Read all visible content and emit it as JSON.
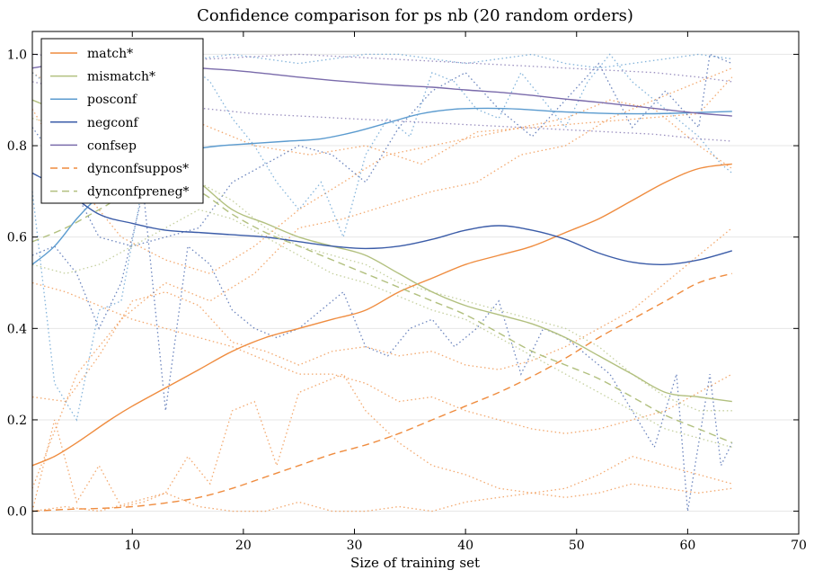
{
  "chart_data": {
    "type": "line",
    "title": "Confidence comparison for ps nb (20 random orders)",
    "xlabel": "Size of training set",
    "ylabel": "",
    "xlim": [
      1,
      70
    ],
    "ylim": [
      -0.05,
      1.05
    ],
    "xticks": [
      10,
      20,
      30,
      40,
      50,
      60,
      70
    ],
    "yticks": [
      0.0,
      0.2,
      0.4,
      0.6,
      0.8,
      1.0
    ],
    "grid": "horizontal",
    "legend_position": "top-left",
    "series": [
      {
        "name": "match*",
        "color": "#ef8c3f",
        "dash": "solid",
        "x": [
          1,
          3,
          5,
          8,
          10,
          13,
          16,
          19,
          22,
          25,
          28,
          31,
          34,
          37,
          40,
          43,
          46,
          49,
          52,
          55,
          58,
          61,
          64
        ],
        "y": [
          0.1,
          0.12,
          0.15,
          0.2,
          0.23,
          0.27,
          0.31,
          0.35,
          0.38,
          0.4,
          0.42,
          0.44,
          0.48,
          0.51,
          0.54,
          0.56,
          0.58,
          0.61,
          0.64,
          0.68,
          0.72,
          0.75,
          0.76
        ]
      },
      {
        "name": "mismatch*",
        "color": "#b2c07f",
        "dash": "solid",
        "x": [
          1,
          4,
          7,
          10,
          13,
          16,
          19,
          22,
          25,
          28,
          31,
          34,
          37,
          40,
          43,
          46,
          49,
          52,
          55,
          58,
          61,
          64
        ],
        "y": [
          0.9,
          0.87,
          0.84,
          0.81,
          0.77,
          0.72,
          0.66,
          0.63,
          0.6,
          0.58,
          0.56,
          0.52,
          0.48,
          0.45,
          0.43,
          0.41,
          0.38,
          0.34,
          0.3,
          0.26,
          0.25,
          0.24
        ]
      },
      {
        "name": "posconf",
        "color": "#5b9bcf",
        "dash": "solid",
        "x": [
          1,
          3,
          5,
          7,
          9,
          12,
          15,
          18,
          21,
          24,
          27,
          30,
          33,
          36,
          39,
          42,
          45,
          48,
          51,
          54,
          57,
          60,
          64
        ],
        "y": [
          0.54,
          0.58,
          0.64,
          0.69,
          0.73,
          0.77,
          0.79,
          0.8,
          0.805,
          0.81,
          0.815,
          0.83,
          0.85,
          0.87,
          0.88,
          0.882,
          0.88,
          0.875,
          0.872,
          0.87,
          0.87,
          0.872,
          0.875
        ]
      },
      {
        "name": "negconf",
        "color": "#3b5ca8",
        "dash": "solid",
        "x": [
          1,
          4,
          7,
          10,
          13,
          16,
          19,
          22,
          25,
          28,
          31,
          34,
          37,
          40,
          43,
          46,
          49,
          52,
          55,
          58,
          61,
          64
        ],
        "y": [
          0.74,
          0.7,
          0.65,
          0.63,
          0.615,
          0.61,
          0.605,
          0.6,
          0.59,
          0.58,
          0.575,
          0.58,
          0.595,
          0.615,
          0.625,
          0.615,
          0.595,
          0.565,
          0.545,
          0.54,
          0.55,
          0.57
        ]
      },
      {
        "name": "confsep",
        "color": "#7a6bab",
        "dash": "solid",
        "x": [
          1,
          4,
          7,
          10,
          13,
          16,
          19,
          22,
          25,
          28,
          31,
          34,
          37,
          40,
          43,
          46,
          49,
          52,
          55,
          58,
          61,
          64
        ],
        "y": [
          0.97,
          0.98,
          0.98,
          0.978,
          0.975,
          0.97,
          0.965,
          0.958,
          0.95,
          0.943,
          0.937,
          0.932,
          0.928,
          0.922,
          0.917,
          0.91,
          0.902,
          0.895,
          0.887,
          0.879,
          0.871,
          0.865
        ]
      },
      {
        "name": "dynconfsuppos*",
        "color": "#ef8c3f",
        "dash": "dashed",
        "x": [
          1,
          4,
          7,
          10,
          13,
          16,
          19,
          22,
          25,
          28,
          31,
          34,
          37,
          40,
          43,
          46,
          49,
          52,
          55,
          58,
          61,
          64
        ],
        "y": [
          0.0,
          0.004,
          0.006,
          0.01,
          0.018,
          0.03,
          0.05,
          0.075,
          0.1,
          0.125,
          0.145,
          0.17,
          0.2,
          0.23,
          0.26,
          0.295,
          0.335,
          0.38,
          0.42,
          0.46,
          0.5,
          0.52
        ]
      },
      {
        "name": "dynconfpreneg*",
        "color": "#b2c07f",
        "dash": "dashed",
        "x": [
          1,
          4,
          7,
          10,
          13,
          16,
          19,
          22,
          25,
          28,
          31,
          34,
          37,
          40,
          43,
          46,
          49,
          52,
          55,
          58,
          61,
          64
        ],
        "y": [
          0.59,
          0.62,
          0.66,
          0.7,
          0.72,
          0.7,
          0.65,
          0.61,
          0.58,
          0.55,
          0.52,
          0.49,
          0.46,
          0.43,
          0.39,
          0.35,
          0.32,
          0.29,
          0.25,
          0.21,
          0.18,
          0.15
        ]
      }
    ],
    "background_runs": [
      {
        "color": "#ef8c3f",
        "x": [
          1,
          6,
          11,
          16,
          21,
          26,
          31,
          36,
          41,
          46,
          51,
          56,
          61,
          64
        ],
        "y": [
          0.96,
          0.88,
          0.82,
          0.85,
          0.8,
          0.78,
          0.8,
          0.76,
          0.83,
          0.84,
          0.85,
          0.86,
          0.87,
          0.95
        ]
      },
      {
        "color": "#ef8c3f",
        "x": [
          1,
          5,
          9,
          13,
          17,
          21,
          25,
          29,
          33,
          37,
          41,
          45,
          49,
          53,
          57,
          61,
          64
        ],
        "y": [
          0.05,
          0.3,
          0.42,
          0.5,
          0.46,
          0.52,
          0.62,
          0.64,
          0.67,
          0.7,
          0.72,
          0.78,
          0.8,
          0.86,
          0.9,
          0.94,
          0.97
        ]
      },
      {
        "color": "#ef8c3f",
        "x": [
          1,
          4,
          7,
          10,
          13,
          16,
          19,
          22,
          25,
          28,
          31,
          34,
          37,
          40,
          43,
          46,
          49,
          52,
          55,
          58,
          61,
          64
        ],
        "y": [
          0.25,
          0.24,
          0.34,
          0.46,
          0.48,
          0.45,
          0.37,
          0.35,
          0.32,
          0.35,
          0.36,
          0.34,
          0.35,
          0.32,
          0.31,
          0.33,
          0.36,
          0.4,
          0.44,
          0.5,
          0.56,
          0.62
        ]
      },
      {
        "color": "#ef8c3f",
        "x": [
          1,
          4,
          7,
          10,
          13,
          16,
          19,
          22,
          25,
          28,
          31,
          34,
          37,
          40,
          43,
          46,
          49,
          52,
          55,
          58,
          61,
          64
        ],
        "y": [
          0.5,
          0.48,
          0.45,
          0.42,
          0.4,
          0.38,
          0.36,
          0.33,
          0.3,
          0.3,
          0.28,
          0.24,
          0.25,
          0.22,
          0.2,
          0.18,
          0.17,
          0.18,
          0.2,
          0.22,
          0.26,
          0.3
        ]
      },
      {
        "color": "#ef8c3f",
        "x": [
          1,
          3,
          5,
          7,
          9,
          11,
          13,
          15,
          17,
          19,
          21,
          23,
          25,
          27,
          29,
          31,
          34,
          37,
          40,
          43,
          46,
          49,
          52,
          55,
          58,
          61,
          64
        ],
        "y": [
          0.0,
          0.2,
          0.02,
          0.1,
          0.01,
          0.02,
          0.04,
          0.12,
          0.06,
          0.22,
          0.24,
          0.1,
          0.26,
          0.28,
          0.3,
          0.22,
          0.15,
          0.1,
          0.08,
          0.05,
          0.04,
          0.03,
          0.04,
          0.06,
          0.05,
          0.04,
          0.05
        ]
      },
      {
        "color": "#ef8c3f",
        "x": [
          1,
          4,
          7,
          10,
          13,
          16,
          19,
          22,
          25,
          28,
          31,
          34,
          37,
          40,
          43,
          46,
          49,
          52,
          55,
          58,
          61,
          64
        ],
        "y": [
          0.0,
          0.01,
          0.0,
          0.02,
          0.04,
          0.01,
          0.0,
          0.0,
          0.02,
          0.0,
          0.0,
          0.01,
          0.0,
          0.02,
          0.03,
          0.04,
          0.05,
          0.08,
          0.12,
          0.1,
          0.08,
          0.06
        ]
      },
      {
        "color": "#ef8c3f",
        "x": [
          1,
          5,
          9,
          13,
          17,
          21,
          25,
          29,
          33,
          37,
          41,
          45,
          49,
          53,
          57,
          61,
          64
        ],
        "y": [
          0.88,
          0.72,
          0.6,
          0.55,
          0.52,
          0.58,
          0.66,
          0.72,
          0.78,
          0.8,
          0.82,
          0.84,
          0.86,
          0.9,
          0.88,
          0.8,
          0.75
        ]
      },
      {
        "color": "#5b9bcf",
        "x": [
          1,
          3,
          5,
          7,
          9,
          11,
          13,
          15,
          17,
          19,
          21,
          23,
          25,
          27,
          29,
          31,
          33,
          35,
          37,
          39,
          41,
          43,
          45,
          47,
          49,
          51,
          53,
          55,
          57,
          59,
          61,
          63,
          64
        ],
        "y": [
          0.7,
          0.28,
          0.2,
          0.44,
          0.46,
          0.72,
          0.92,
          0.98,
          0.94,
          0.86,
          0.8,
          0.72,
          0.66,
          0.72,
          0.6,
          0.78,
          0.86,
          0.82,
          0.96,
          0.94,
          0.88,
          0.86,
          0.96,
          0.9,
          0.84,
          0.94,
          1.0,
          0.94,
          0.9,
          0.86,
          0.82,
          0.76,
          0.74
        ]
      },
      {
        "color": "#5b9bcf",
        "x": [
          1,
          4,
          7,
          10,
          13,
          16,
          19,
          22,
          25,
          28,
          31,
          34,
          37,
          40,
          43,
          46,
          49,
          52,
          55,
          58,
          61,
          64
        ],
        "y": [
          0.96,
          0.9,
          0.92,
          0.94,
          0.98,
          0.99,
          1.0,
          0.99,
          0.98,
          0.99,
          1.0,
          1.0,
          0.99,
          0.98,
          0.99,
          1.0,
          0.98,
          0.97,
          0.98,
          0.99,
          1.0,
          0.99
        ]
      },
      {
        "color": "#3b5ca8",
        "x": [
          1,
          3,
          5,
          7,
          9,
          11,
          13,
          15,
          17,
          19,
          21,
          23,
          25,
          27,
          29,
          31,
          33,
          35,
          37,
          39,
          41,
          43,
          45,
          47,
          49,
          51,
          53,
          55,
          57,
          59,
          60,
          62,
          63,
          64
        ],
        "y": [
          0.56,
          0.58,
          0.52,
          0.4,
          0.5,
          0.7,
          0.22,
          0.58,
          0.54,
          0.44,
          0.4,
          0.38,
          0.4,
          0.44,
          0.48,
          0.36,
          0.34,
          0.4,
          0.42,
          0.36,
          0.4,
          0.46,
          0.3,
          0.4,
          0.38,
          0.34,
          0.3,
          0.22,
          0.14,
          0.3,
          0.0,
          0.3,
          0.1,
          0.15
        ]
      },
      {
        "color": "#3b5ca8",
        "x": [
          1,
          4,
          7,
          10,
          13,
          16,
          19,
          22,
          25,
          28,
          31,
          34,
          37,
          40,
          43,
          46,
          49,
          52,
          55,
          58,
          61,
          62,
          64
        ],
        "y": [
          0.84,
          0.74,
          0.6,
          0.58,
          0.6,
          0.62,
          0.72,
          0.76,
          0.8,
          0.78,
          0.72,
          0.84,
          0.92,
          0.96,
          0.88,
          0.82,
          0.9,
          0.98,
          0.84,
          0.92,
          0.84,
          1.0,
          0.98
        ]
      },
      {
        "color": "#7a6bab",
        "x": [
          1,
          5,
          9,
          13,
          17,
          21,
          25,
          29,
          33,
          37,
          41,
          45,
          49,
          53,
          57,
          61,
          64
        ],
        "y": [
          1.0,
          0.99,
          0.98,
          0.985,
          0.99,
          0.995,
          1.0,
          0.995,
          0.99,
          0.985,
          0.98,
          0.975,
          0.97,
          0.965,
          0.96,
          0.95,
          0.94
        ]
      },
      {
        "color": "#7a6bab",
        "x": [
          1,
          5,
          9,
          13,
          17,
          21,
          25,
          29,
          33,
          37,
          41,
          45,
          49,
          53,
          57,
          61,
          64
        ],
        "y": [
          0.94,
          0.92,
          0.9,
          0.89,
          0.88,
          0.87,
          0.865,
          0.86,
          0.855,
          0.85,
          0.845,
          0.84,
          0.835,
          0.83,
          0.825,
          0.815,
          0.81
        ]
      },
      {
        "color": "#b2c07f",
        "x": [
          1,
          4,
          7,
          10,
          13,
          16,
          19,
          22,
          25,
          28,
          31,
          34,
          37,
          40,
          43,
          46,
          49,
          52,
          55,
          58,
          61,
          64
        ],
        "y": [
          0.86,
          0.84,
          0.8,
          0.78,
          0.76,
          0.72,
          0.68,
          0.62,
          0.58,
          0.56,
          0.54,
          0.5,
          0.48,
          0.46,
          0.44,
          0.42,
          0.4,
          0.36,
          0.3,
          0.25,
          0.22,
          0.22
        ]
      },
      {
        "color": "#b2c07f",
        "x": [
          1,
          4,
          7,
          10,
          13,
          16,
          19,
          22,
          25,
          28,
          31,
          34,
          37,
          40,
          43,
          46,
          49,
          52,
          55,
          58,
          61,
          64
        ],
        "y": [
          0.54,
          0.52,
          0.54,
          0.58,
          0.62,
          0.66,
          0.64,
          0.6,
          0.56,
          0.52,
          0.5,
          0.47,
          0.44,
          0.42,
          0.38,
          0.34,
          0.3,
          0.26,
          0.22,
          0.18,
          0.16,
          0.14
        ]
      }
    ]
  }
}
